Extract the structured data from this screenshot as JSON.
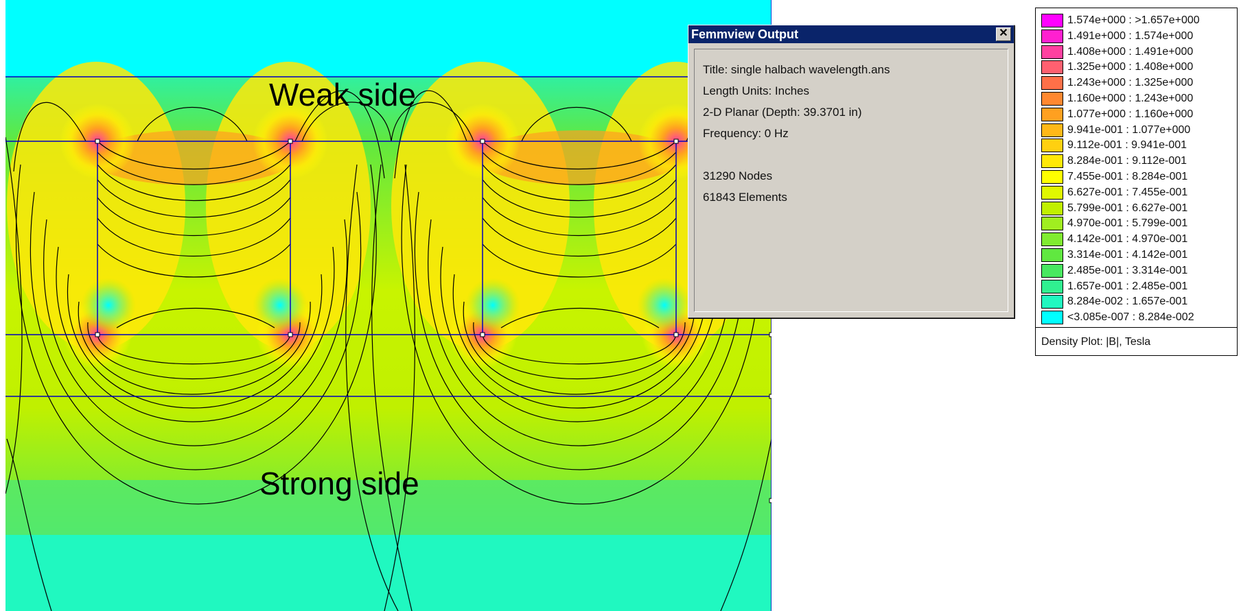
{
  "annotations": {
    "weak_side": "Weak side",
    "strong_side": "Strong side"
  },
  "output_window": {
    "title": "Femmview Output",
    "close_icon": "close-icon",
    "lines": [
      "Title: single halbach wavelength.ans",
      "Length Units: Inches",
      "2-D Planar (Depth: 39.3701 in)",
      "Frequency: 0 Hz",
      "",
      "31290 Nodes",
      "61843 Elements"
    ]
  },
  "legend": {
    "caption": "Density Plot: |B|, Tesla",
    "entries": [
      {
        "label": "1.574e+000 : >1.657e+000",
        "color": "#ff00ff"
      },
      {
        "label": "1.491e+000 : 1.574e+000",
        "color": "#ff20d0"
      },
      {
        "label": "1.408e+000 : 1.491e+000",
        "color": "#ff40a0"
      },
      {
        "label": "1.325e+000 : 1.408e+000",
        "color": "#ff6070"
      },
      {
        "label": "1.243e+000 : 1.325e+000",
        "color": "#ff7048"
      },
      {
        "label": "1.160e+000 : 1.243e+000",
        "color": "#ff8830"
      },
      {
        "label": "1.077e+000 : 1.160e+000",
        "color": "#ffa020"
      },
      {
        "label": "9.941e-001 : 1.077e+000",
        "color": "#ffb818"
      },
      {
        "label": "9.112e-001 : 9.941e-001",
        "color": "#ffd010"
      },
      {
        "label": "8.284e-001 : 9.112e-001",
        "color": "#ffe808"
      },
      {
        "label": "7.455e-001 : 8.284e-001",
        "color": "#ffff00"
      },
      {
        "label": "6.627e-001 : 7.455e-001",
        "color": "#e0f800"
      },
      {
        "label": "5.799e-001 : 6.627e-001",
        "color": "#c0f000"
      },
      {
        "label": "4.970e-001 : 5.799e-001",
        "color": "#a0ee20"
      },
      {
        "label": "4.142e-001 : 4.970e-001",
        "color": "#80ec30"
      },
      {
        "label": "3.314e-001 : 4.142e-001",
        "color": "#60e840"
      },
      {
        "label": "2.485e-001 : 3.314e-001",
        "color": "#48e860"
      },
      {
        "label": "1.657e-001 : 2.485e-001",
        "color": "#30f090"
      },
      {
        "label": "8.284e-002 : 1.657e-001",
        "color": "#20f8c0"
      },
      {
        "label": "<3.085e-007 : 8.284e-002",
        "color": "#00ffff"
      }
    ]
  },
  "plot": {
    "background_colors": {
      "air_top": "#00ffff",
      "weak_band": "#30f0a0",
      "mid_band": "#60e840",
      "strong_band": "#80ec30",
      "bottom": "#20f8c0"
    }
  }
}
